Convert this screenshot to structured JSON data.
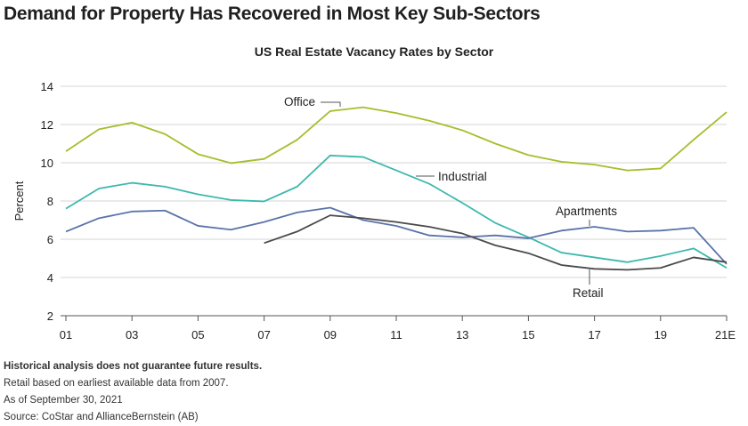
{
  "headline": "Demand for Property Has Recovered in Most Key Sub-Sectors",
  "footnotes": {
    "disclaimer": "Historical analysis does not guarantee future results.",
    "retail_note": "Retail based on earliest available data from 2007.",
    "as_of": "As of September 30, 2021",
    "source": "Source: CoStar and AllianceBernstein (AB)"
  },
  "colors": {
    "office": "#a4bf2c",
    "industrial": "#3db8ad",
    "apartments": "#5a73a8",
    "retail": "#4a4a4a"
  },
  "chart_data": {
    "type": "line",
    "title": "US Real Estate Vacancy Rates by Sector",
    "xlabel": "",
    "ylabel": "Percent",
    "ylim": [
      2,
      14
    ],
    "yticks": [
      2,
      4,
      6,
      8,
      10,
      12,
      14
    ],
    "xlim": [
      2001,
      2021
    ],
    "x": [
      2001,
      2002,
      2003,
      2004,
      2005,
      2006,
      2007,
      2008,
      2009,
      2010,
      2011,
      2012,
      2013,
      2014,
      2015,
      2016,
      2017,
      2018,
      2019,
      2020,
      2021
    ],
    "xtick_labels": [
      "01",
      "03",
      "05",
      "07",
      "09",
      "11",
      "13",
      "15",
      "17",
      "19",
      "21E"
    ],
    "xtick_values": [
      2001,
      2003,
      2005,
      2007,
      2009,
      2011,
      2013,
      2015,
      2017,
      2019,
      2021
    ],
    "grid": true,
    "legend": "none",
    "series": [
      {
        "name": "Office",
        "color_key": "office",
        "values": [
          10.6,
          11.75,
          12.1,
          11.5,
          10.45,
          9.98,
          10.2,
          11.2,
          12.7,
          12.9,
          12.6,
          12.2,
          11.7,
          11.0,
          10.4,
          10.05,
          9.9,
          9.6,
          9.7,
          11.2,
          12.65
        ]
      },
      {
        "name": "Industrial",
        "color_key": "industrial",
        "values": [
          7.6,
          8.65,
          8.95,
          8.75,
          8.35,
          8.05,
          7.98,
          8.75,
          10.38,
          10.3,
          9.6,
          8.9,
          7.9,
          6.85,
          6.1,
          5.3,
          5.05,
          4.8,
          5.12,
          5.52,
          4.5
        ]
      },
      {
        "name": "Apartments",
        "color_key": "apartments",
        "values": [
          6.4,
          7.1,
          7.45,
          7.5,
          6.7,
          6.5,
          6.9,
          7.4,
          7.65,
          7.0,
          6.7,
          6.2,
          6.1,
          6.2,
          6.05,
          6.45,
          6.65,
          6.4,
          6.45,
          6.6,
          4.7
        ]
      },
      {
        "name": "Retail",
        "color_key": "retail",
        "values": [
          null,
          null,
          null,
          null,
          null,
          null,
          5.8,
          6.4,
          7.25,
          7.1,
          6.9,
          6.65,
          6.3,
          5.68,
          5.27,
          4.65,
          4.45,
          4.4,
          4.5,
          5.05,
          4.8
        ]
      }
    ],
    "annotations": [
      {
        "text": "Office",
        "series": "Office"
      },
      {
        "text": "Industrial",
        "series": "Industrial"
      },
      {
        "text": "Apartments",
        "series": "Apartments"
      },
      {
        "text": "Retail",
        "series": "Retail"
      }
    ]
  }
}
